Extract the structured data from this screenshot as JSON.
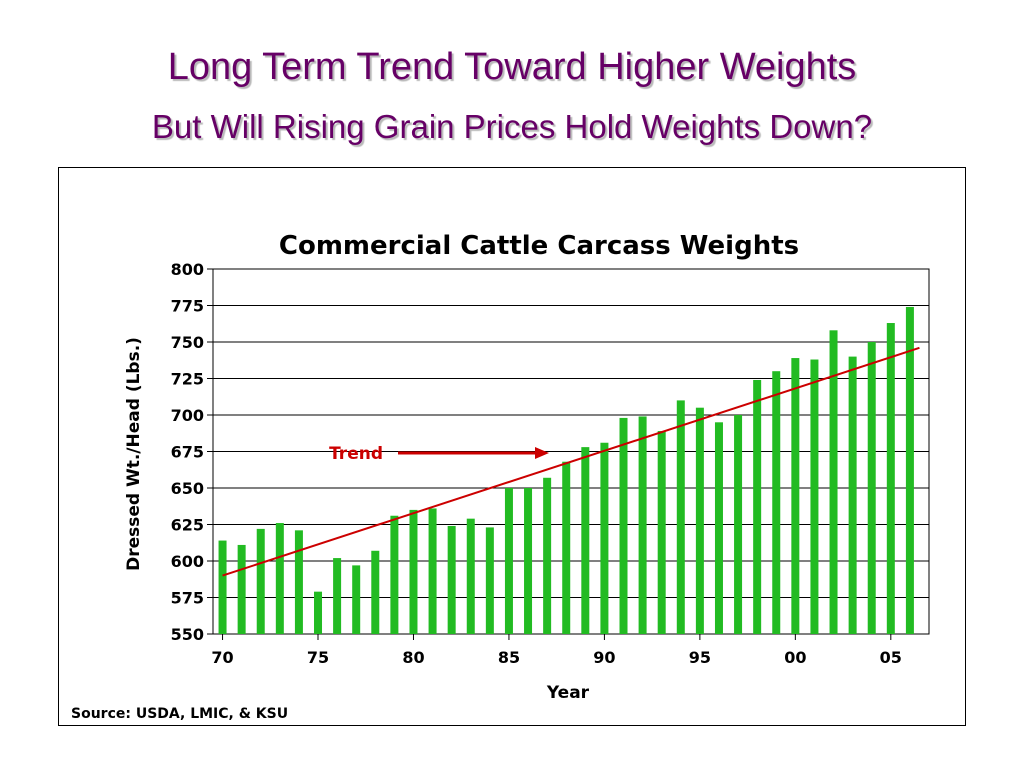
{
  "slide": {
    "title": "Long Term Trend Toward Higher Weights",
    "subtitle": "But Will Rising Grain Prices Hold Weights Down?",
    "source": "Source:  USDA, LMIC, & KSU"
  },
  "colors": {
    "title": "#660066",
    "bar": "#22bb22",
    "trend": "#cc0000",
    "grid": "#000000"
  },
  "chart_data": {
    "type": "bar",
    "title": "Commercial Cattle Carcass Weights",
    "xlabel": "Year",
    "ylabel": "Dressed Wt./Head (Lbs.)",
    "ylim": [
      550,
      800
    ],
    "yticks": [
      "550",
      "575",
      "600",
      "625",
      "650",
      "675",
      "700",
      "725",
      "750",
      "775",
      "800"
    ],
    "xticks": [
      "70",
      "75",
      "80",
      "85",
      "90",
      "95",
      "00",
      "05"
    ],
    "grid": true,
    "categories": [
      1970,
      1971,
      1972,
      1973,
      1974,
      1975,
      1976,
      1977,
      1978,
      1979,
      1980,
      1981,
      1982,
      1983,
      1984,
      1985,
      1986,
      1987,
      1988,
      1989,
      1990,
      1991,
      1992,
      1993,
      1994,
      1995,
      1996,
      1997,
      1998,
      1999,
      2000,
      2001,
      2002,
      2003,
      2004,
      2005,
      2006
    ],
    "values": [
      614,
      611,
      622,
      626,
      621,
      579,
      602,
      597,
      607,
      631,
      635,
      636,
      624,
      629,
      623,
      650,
      650,
      657,
      668,
      678,
      681,
      698,
      699,
      689,
      710,
      705,
      695,
      700,
      724,
      730,
      739,
      738,
      758,
      740,
      750,
      763,
      774
    ],
    "trend": {
      "label": "Trend",
      "start": [
        1970,
        590
      ],
      "end": [
        2006.5,
        746
      ]
    }
  }
}
